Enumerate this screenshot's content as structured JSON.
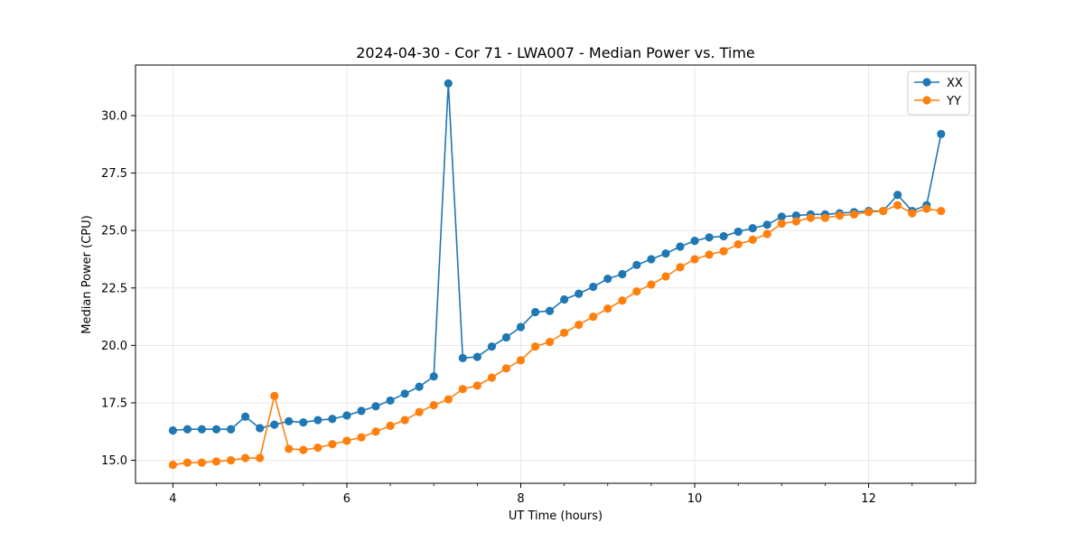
{
  "chart_data": {
    "type": "line",
    "title": "2024-04-30 - Cor 71 - LWA007 - Median Power vs. Time",
    "xlabel": "UT Time (hours)",
    "ylabel": "Median Power (CPU)",
    "xlim": [
      3.57,
      13.23
    ],
    "ylim": [
      14.0,
      32.2
    ],
    "xticks": [
      4,
      6,
      8,
      10,
      12
    ],
    "xtick_labels": [
      "4",
      "6",
      "8",
      "10",
      "12"
    ],
    "x_minor_step": 0.5,
    "yticks": [
      15.0,
      17.5,
      20.0,
      22.5,
      25.0,
      27.5,
      30.0
    ],
    "ytick_labels": [
      "15.0",
      "17.5",
      "20.0",
      "22.5",
      "25.0",
      "27.5",
      "30.0"
    ],
    "grid": true,
    "legend_position": "upper right",
    "x": [
      4.0,
      4.167,
      4.333,
      4.5,
      4.667,
      4.833,
      5.0,
      5.167,
      5.333,
      5.5,
      5.667,
      5.833,
      6.0,
      6.167,
      6.333,
      6.5,
      6.667,
      6.833,
      7.0,
      7.167,
      7.333,
      7.5,
      7.667,
      7.833,
      8.0,
      8.167,
      8.333,
      8.5,
      8.667,
      8.833,
      9.0,
      9.167,
      9.333,
      9.5,
      9.667,
      9.833,
      10.0,
      10.167,
      10.333,
      10.5,
      10.667,
      10.833,
      11.0,
      11.167,
      11.333,
      11.5,
      11.667,
      11.833,
      12.0,
      12.167,
      12.333,
      12.5,
      12.667,
      12.833
    ],
    "series": [
      {
        "name": "XX",
        "color": "#1f77b4",
        "values": [
          16.3,
          16.35,
          16.35,
          16.35,
          16.35,
          16.9,
          16.4,
          16.55,
          16.7,
          16.65,
          16.75,
          16.8,
          16.95,
          17.15,
          17.35,
          17.6,
          17.9,
          18.2,
          18.65,
          31.4,
          19.45,
          19.5,
          19.95,
          20.35,
          20.8,
          21.45,
          21.5,
          22.0,
          22.25,
          22.55,
          22.9,
          23.1,
          23.5,
          23.75,
          24.0,
          24.3,
          24.55,
          24.7,
          24.75,
          24.95,
          25.1,
          25.25,
          25.6,
          25.65,
          25.7,
          25.7,
          25.75,
          25.8,
          25.85,
          25.85,
          26.55,
          25.85,
          26.1,
          29.2
        ]
      },
      {
        "name": "YY",
        "color": "#ff7f0e",
        "values": [
          14.8,
          14.9,
          14.9,
          14.95,
          15.0,
          15.1,
          15.1,
          17.8,
          15.5,
          15.45,
          15.55,
          15.7,
          15.85,
          16.0,
          16.25,
          16.5,
          16.75,
          17.1,
          17.4,
          17.65,
          18.1,
          18.25,
          18.6,
          19.0,
          19.35,
          19.95,
          20.15,
          20.55,
          20.9,
          21.25,
          21.6,
          21.95,
          22.35,
          22.65,
          23.0,
          23.4,
          23.75,
          23.95,
          24.1,
          24.4,
          24.6,
          24.85,
          25.3,
          25.4,
          25.55,
          25.55,
          25.65,
          25.7,
          25.8,
          25.85,
          26.1,
          25.75,
          25.95,
          25.85
        ]
      }
    ]
  }
}
